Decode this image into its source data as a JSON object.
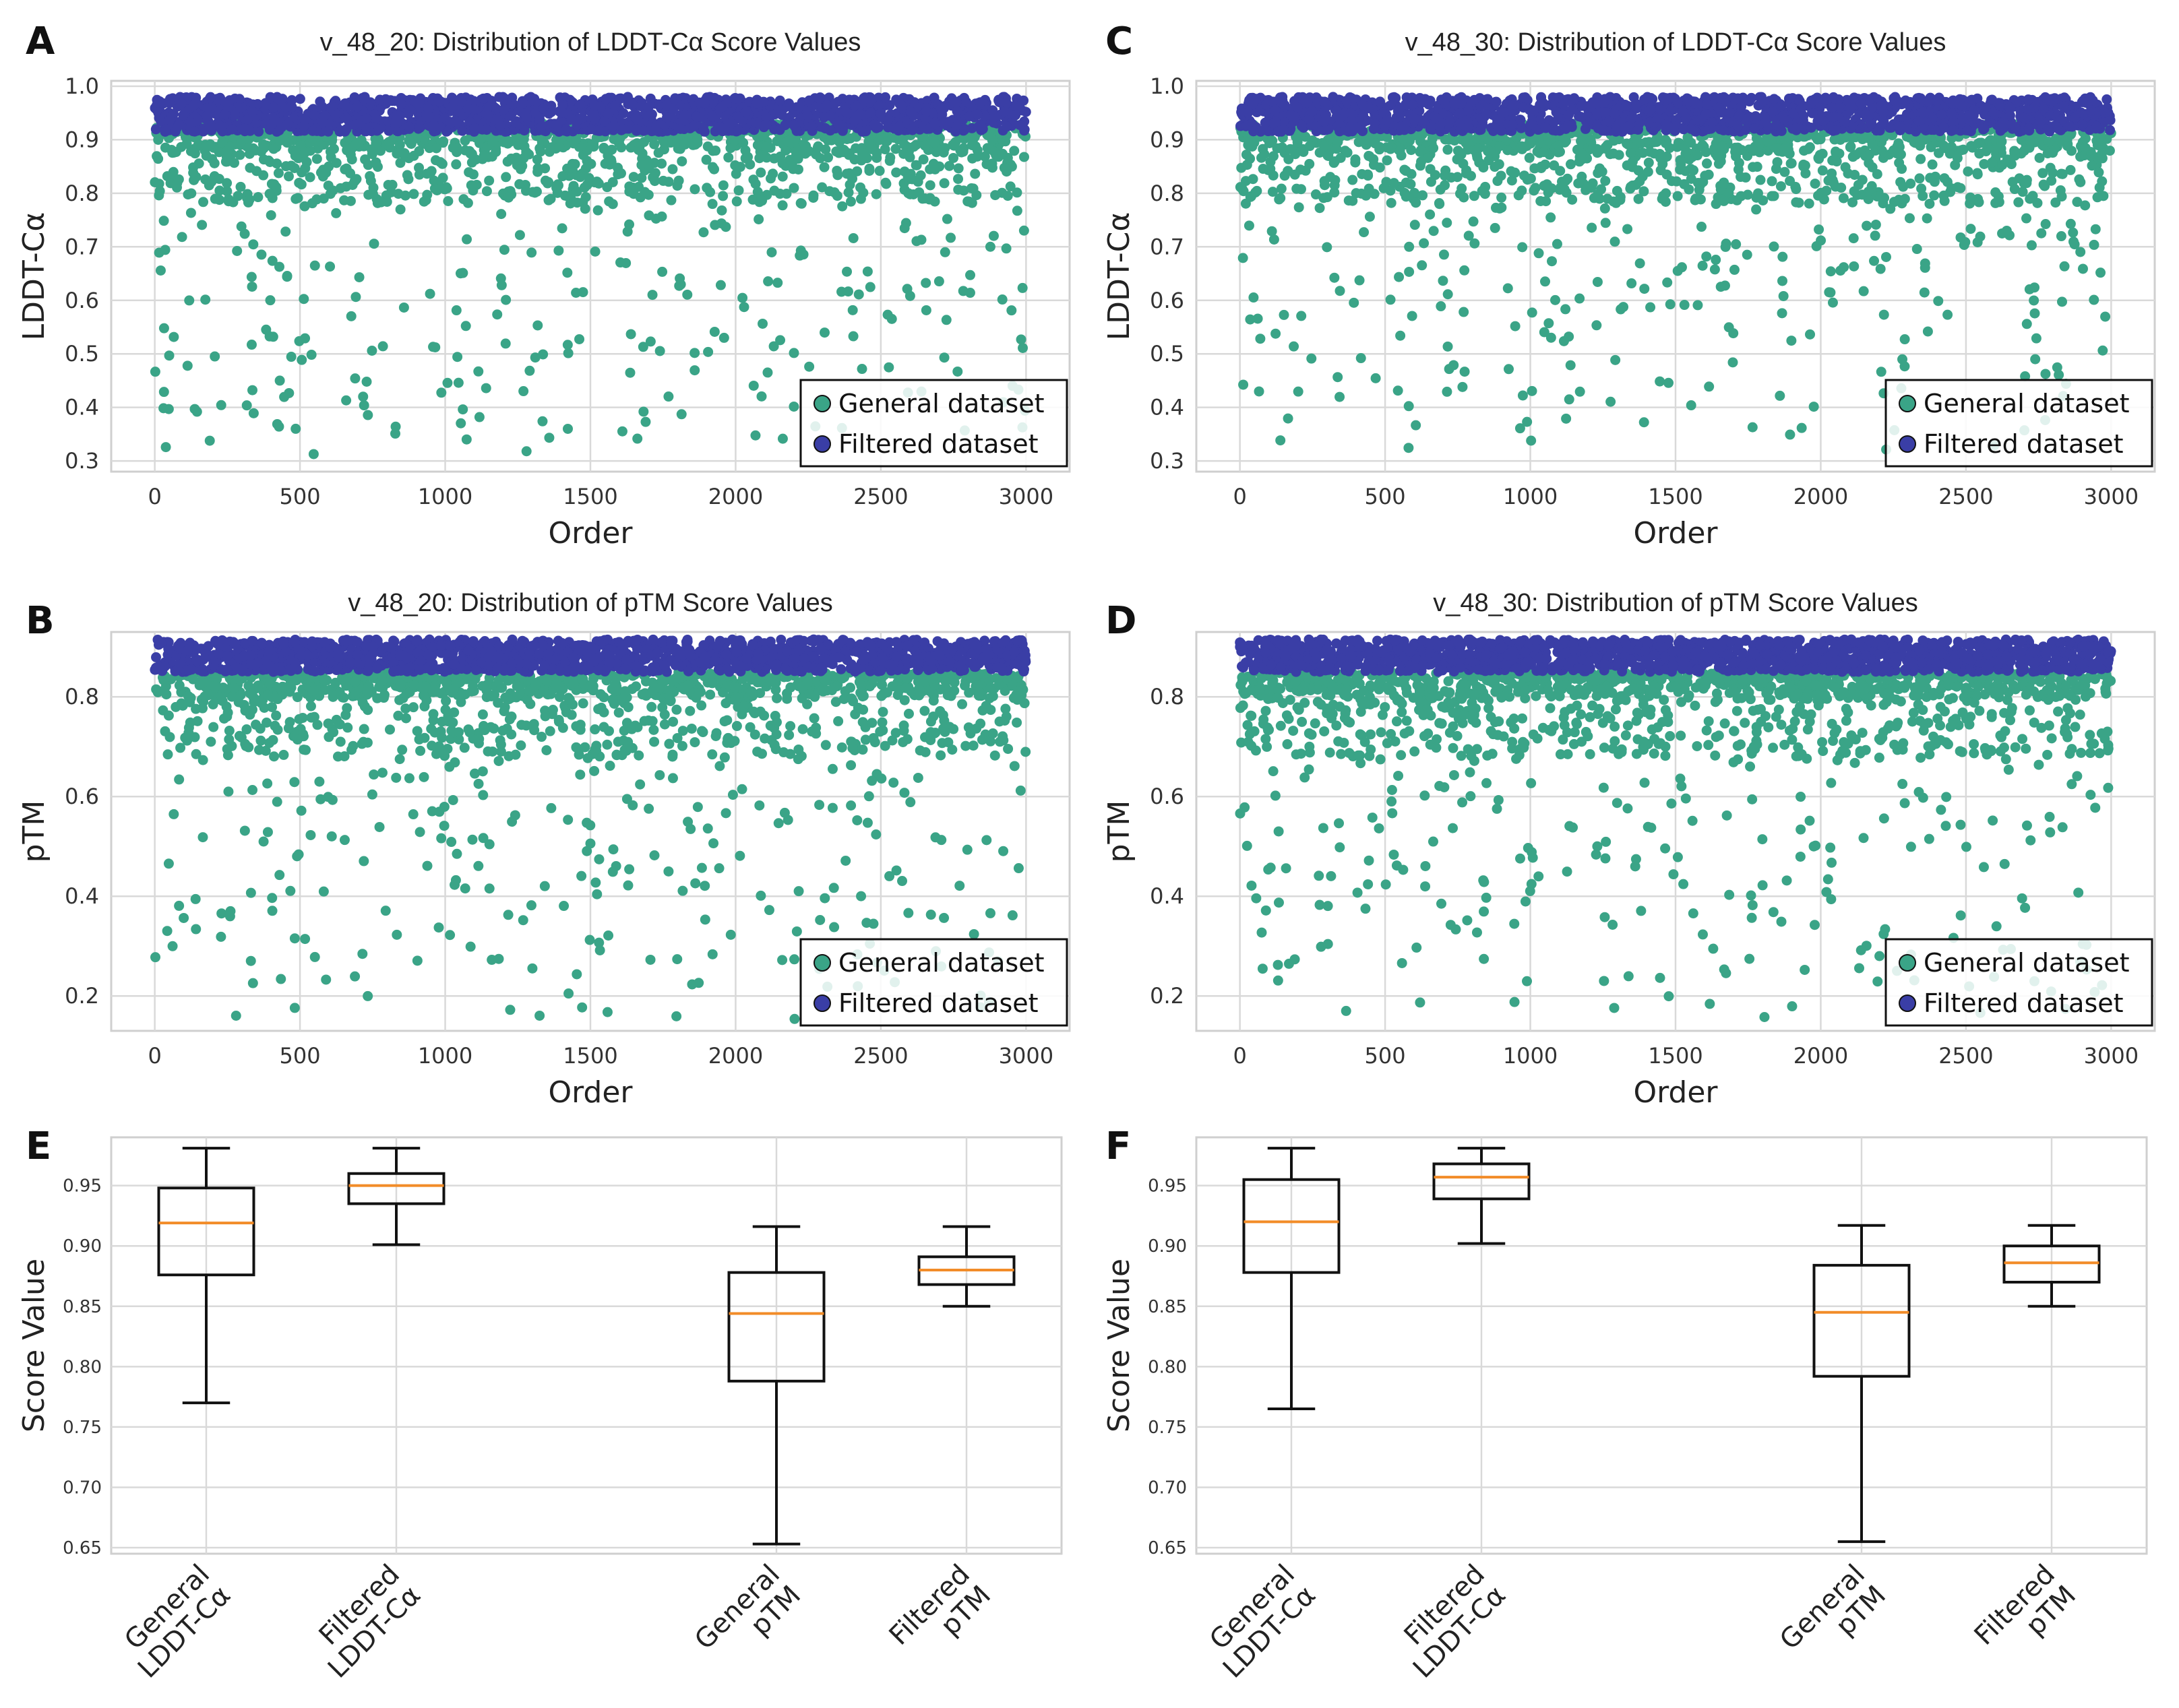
{
  "figure": {
    "colors": {
      "general": "#3aa487",
      "filtered": "#3a3ea6",
      "grid": "#d9d9d9",
      "frame": "#cfcfcf",
      "median": "#f28c28",
      "box": "#111111"
    }
  },
  "chart_data": [
    {
      "id": "A",
      "letter": "A",
      "type": "scatter",
      "title": "v_48_20: Distribution of LDDT-Cα Score Values",
      "xlabel": "Order",
      "ylabel": "LDDT-Cα",
      "xlim": [
        -150,
        3150
      ],
      "ylim": [
        0.28,
        1.01
      ],
      "xticks": [
        0,
        500,
        1000,
        1500,
        2000,
        2500,
        3000
      ],
      "yticks": [
        0.3,
        0.4,
        0.5,
        0.6,
        0.7,
        0.8,
        0.9,
        1.0
      ],
      "ytick_labels": [
        "0.3",
        "0.4",
        "0.5",
        "0.6",
        "0.7",
        "0.8",
        "0.9",
        "1.0"
      ],
      "series": [
        {
          "name": "General dataset",
          "n": 3000,
          "band": [
            0.86,
            0.93
          ],
          "mid_range": [
            0.78,
            0.86
          ],
          "tail_range": [
            0.31,
            0.78
          ],
          "seed": 11
        },
        {
          "name": "Filtered dataset",
          "n": 3000,
          "band": [
            0.915,
            0.98
          ],
          "seed": 12
        }
      ],
      "legend": [
        "General dataset",
        "Filtered dataset"
      ],
      "legend_loc": "lower-right"
    },
    {
      "id": "C",
      "letter": "C",
      "type": "scatter",
      "title": "v_48_30: Distribution of LDDT-Cα Score Values",
      "xlabel": "Order",
      "ylabel": "LDDT-Cα",
      "xlim": [
        -150,
        3150
      ],
      "ylim": [
        0.28,
        1.01
      ],
      "xticks": [
        0,
        500,
        1000,
        1500,
        2000,
        2500,
        3000
      ],
      "yticks": [
        0.3,
        0.4,
        0.5,
        0.6,
        0.7,
        0.8,
        0.9,
        1.0
      ],
      "ytick_labels": [
        "0.3",
        "0.4",
        "0.5",
        "0.6",
        "0.7",
        "0.8",
        "0.9",
        "1.0"
      ],
      "series": [
        {
          "name": "General dataset",
          "n": 3000,
          "band": [
            0.86,
            0.93
          ],
          "mid_range": [
            0.78,
            0.86
          ],
          "tail_range": [
            0.31,
            0.78
          ],
          "seed": 21
        },
        {
          "name": "Filtered dataset",
          "n": 3000,
          "band": [
            0.915,
            0.98
          ],
          "seed": 22
        }
      ],
      "legend": [
        "General dataset",
        "Filtered dataset"
      ],
      "legend_loc": "lower-right"
    },
    {
      "id": "B",
      "letter": "B",
      "type": "scatter",
      "title": "v_48_20: Distribution of pTM Score Values",
      "xlabel": "Order",
      "ylabel": "pTM",
      "xlim": [
        -150,
        3150
      ],
      "ylim": [
        0.13,
        0.93
      ],
      "xticks": [
        0,
        500,
        1000,
        1500,
        2000,
        2500,
        3000
      ],
      "yticks": [
        0.2,
        0.4,
        0.6,
        0.8
      ],
      "ytick_labels": [
        "0.2",
        "0.4",
        "0.6",
        "0.8"
      ],
      "series": [
        {
          "name": "General dataset",
          "n": 3000,
          "band": [
            0.79,
            0.85
          ],
          "mid_range": [
            0.68,
            0.79
          ],
          "tail_range": [
            0.15,
            0.68
          ],
          "seed": 31
        },
        {
          "name": "Filtered dataset",
          "n": 3000,
          "band": [
            0.85,
            0.915
          ],
          "seed": 32
        }
      ],
      "legend": [
        "General dataset",
        "Filtered dataset"
      ],
      "legend_loc": "lower-right"
    },
    {
      "id": "D",
      "letter": "D",
      "type": "scatter",
      "title": "v_48_30: Distribution of pTM Score Values",
      "xlabel": "Order",
      "ylabel": "pTM",
      "xlim": [
        -150,
        3150
      ],
      "ylim": [
        0.13,
        0.93
      ],
      "xticks": [
        0,
        500,
        1000,
        1500,
        2000,
        2500,
        3000
      ],
      "yticks": [
        0.2,
        0.4,
        0.6,
        0.8
      ],
      "ytick_labels": [
        "0.2",
        "0.4",
        "0.6",
        "0.8"
      ],
      "series": [
        {
          "name": "General dataset",
          "n": 3000,
          "band": [
            0.79,
            0.85
          ],
          "mid_range": [
            0.68,
            0.79
          ],
          "tail_range": [
            0.15,
            0.68
          ],
          "seed": 41
        },
        {
          "name": "Filtered dataset",
          "n": 3000,
          "band": [
            0.85,
            0.915
          ],
          "seed": 42
        }
      ],
      "legend": [
        "General dataset",
        "Filtered dataset"
      ],
      "legend_loc": "lower-right"
    },
    {
      "id": "E",
      "letter": "E",
      "type": "box",
      "ylabel": "Score Value",
      "ylim": [
        0.645,
        0.99
      ],
      "yticks": [
        0.65,
        0.7,
        0.75,
        0.8,
        0.85,
        0.9,
        0.95
      ],
      "ytick_labels": [
        "0.65",
        "0.70",
        "0.75",
        "0.80",
        "0.85",
        "0.90",
        "0.95"
      ],
      "categories": [
        {
          "label_lines": [
            "General",
            "LDDT-Cα"
          ],
          "pos": 1,
          "whislo": 0.77,
          "q1": 0.876,
          "med": 0.919,
          "q3": 0.948,
          "whishi": 0.981
        },
        {
          "label_lines": [
            "Filtered",
            "LDDT-Cα"
          ],
          "pos": 2,
          "whislo": 0.901,
          "q1": 0.935,
          "med": 0.95,
          "q3": 0.96,
          "whishi": 0.981
        },
        {
          "label_lines": [
            "General",
            "pTM"
          ],
          "pos": 4,
          "whislo": 0.653,
          "q1": 0.788,
          "med": 0.844,
          "q3": 0.878,
          "whishi": 0.916
        },
        {
          "label_lines": [
            "Filtered",
            "pTM"
          ],
          "pos": 5,
          "whislo": 0.85,
          "q1": 0.868,
          "med": 0.88,
          "q3": 0.891,
          "whishi": 0.916
        }
      ]
    },
    {
      "id": "F",
      "letter": "F",
      "type": "box",
      "ylabel": "Score Value",
      "ylim": [
        0.645,
        0.99
      ],
      "yticks": [
        0.65,
        0.7,
        0.75,
        0.8,
        0.85,
        0.9,
        0.95
      ],
      "ytick_labels": [
        "0.65",
        "0.70",
        "0.75",
        "0.80",
        "0.85",
        "0.90",
        "0.95"
      ],
      "categories": [
        {
          "label_lines": [
            "General",
            "LDDT-Cα"
          ],
          "pos": 1,
          "whislo": 0.765,
          "q1": 0.878,
          "med": 0.92,
          "q3": 0.955,
          "whishi": 0.981
        },
        {
          "label_lines": [
            "Filtered",
            "LDDT-Cα"
          ],
          "pos": 2,
          "whislo": 0.902,
          "q1": 0.939,
          "med": 0.957,
          "q3": 0.968,
          "whishi": 0.981
        },
        {
          "label_lines": [
            "General",
            "pTM"
          ],
          "pos": 4,
          "whislo": 0.655,
          "q1": 0.792,
          "med": 0.845,
          "q3": 0.884,
          "whishi": 0.917
        },
        {
          "label_lines": [
            "Filtered",
            "pTM"
          ],
          "pos": 5,
          "whislo": 0.85,
          "q1": 0.87,
          "med": 0.886,
          "q3": 0.9,
          "whishi": 0.917
        }
      ]
    }
  ]
}
